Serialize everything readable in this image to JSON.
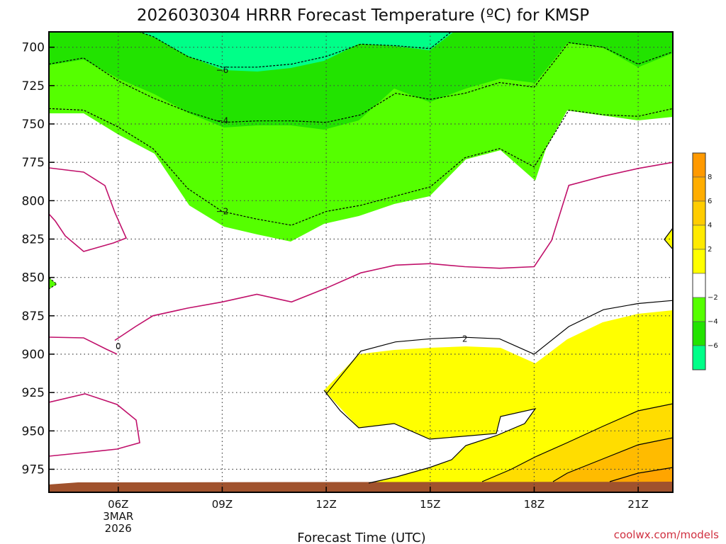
{
  "chart_data": {
    "type": "heatmap",
    "title": "2026030304 HRRR Forecast Temperature (ºC) for KMSP",
    "xlabel": "Forecast Time (UTC)",
    "ylabel": "",
    "credit": "coolwx.com/models",
    "x_hours": [
      4,
      5,
      6,
      7,
      8,
      9,
      10,
      11,
      12,
      13,
      14,
      15,
      16,
      17,
      18,
      19,
      20,
      21,
      22
    ],
    "x_range": [
      4,
      22
    ],
    "y_range": [
      990,
      690
    ],
    "x_ticks": [
      {
        "hour": 6,
        "label": "06Z",
        "sub": [
          "3MAR",
          "2026"
        ]
      },
      {
        "hour": 9,
        "label": "09Z"
      },
      {
        "hour": 12,
        "label": "12Z"
      },
      {
        "hour": 15,
        "label": "15Z"
      },
      {
        "hour": 18,
        "label": "18Z"
      },
      {
        "hour": 21,
        "label": "21Z"
      }
    ],
    "y_ticks": [
      700,
      725,
      750,
      775,
      800,
      825,
      850,
      875,
      900,
      925,
      950,
      975
    ],
    "y_tick_labels": [
      "700",
      "725",
      "750",
      "775",
      "800",
      "825",
      "850",
      "875",
      "900",
      "925",
      "950",
      "975"
    ],
    "grid": true,
    "isotherms": [
      {
        "level": -6,
        "label": "−6",
        "label_at": [
          9,
          715
        ],
        "points": [
          [
            6.6,
            690
          ],
          [
            7.0,
            693
          ],
          [
            8.0,
            706
          ],
          [
            9.0,
            713
          ],
          [
            10.0,
            713
          ],
          [
            11.0,
            711
          ],
          [
            12.0,
            706
          ],
          [
            13.0,
            698
          ],
          [
            14.0,
            699
          ],
          [
            15.0,
            701
          ],
          [
            15.6,
            690
          ]
        ]
      },
      {
        "level": -4,
        "label": "−4",
        "label_at": [
          9,
          748
        ],
        "points": [
          [
            4,
            711
          ],
          [
            5,
            707
          ],
          [
            6,
            722
          ],
          [
            7,
            733
          ],
          [
            8,
            742
          ],
          [
            9,
            749
          ],
          [
            10,
            748
          ],
          [
            11,
            748
          ],
          [
            12,
            749
          ],
          [
            13,
            744
          ],
          [
            14,
            730
          ],
          [
            15,
            734
          ],
          [
            16,
            730
          ],
          [
            17,
            723
          ],
          [
            18,
            726
          ],
          [
            19,
            697
          ],
          [
            20,
            700
          ],
          [
            21,
            711
          ],
          [
            22,
            703
          ]
        ]
      },
      {
        "level": -2,
        "label": "−2",
        "label_at": [
          9,
          807
        ],
        "points": [
          [
            4,
            740
          ],
          [
            5,
            741
          ],
          [
            6,
            752
          ],
          [
            7,
            766
          ],
          [
            8,
            792
          ],
          [
            9,
            807
          ],
          [
            10,
            812
          ],
          [
            11,
            816
          ],
          [
            12,
            807
          ],
          [
            13,
            803
          ],
          [
            14,
            797
          ],
          [
            15,
            791
          ],
          [
            16,
            772
          ],
          [
            17,
            766
          ],
          [
            18,
            778
          ],
          [
            19,
            741
          ],
          [
            20,
            744
          ],
          [
            21,
            745
          ],
          [
            22,
            740
          ]
        ]
      },
      {
        "level": 0,
        "label": "0",
        "label_at": [
          6,
          895
        ],
        "points": [
          [
            5.9,
            891
          ],
          [
            6.5,
            882
          ],
          [
            7.0,
            875
          ],
          [
            8.0,
            870
          ],
          [
            9.0,
            866
          ],
          [
            10.0,
            861
          ],
          [
            11.0,
            866
          ],
          [
            12.0,
            857
          ],
          [
            13.0,
            847
          ],
          [
            14.0,
            842
          ],
          [
            15.0,
            841
          ],
          [
            16.0,
            843
          ],
          [
            17.0,
            844
          ],
          [
            18.0,
            843
          ],
          [
            18.5,
            826
          ],
          [
            19.0,
            790
          ],
          [
            20.0,
            784
          ],
          [
            21.0,
            779
          ],
          [
            22.0,
            775
          ]
        ]
      },
      {
        "level": 2,
        "label": "2",
        "label_at": [
          16,
          890
        ],
        "points": [
          [
            12.0,
            926
          ],
          [
            13.0,
            898
          ],
          [
            14.0,
            892
          ],
          [
            15.0,
            890
          ],
          [
            16.0,
            889
          ],
          [
            17.0,
            890
          ],
          [
            18.0,
            900
          ],
          [
            19.0,
            882
          ],
          [
            20.0,
            871
          ],
          [
            21.0,
            867
          ],
          [
            22.0,
            865
          ]
        ]
      }
    ],
    "colorbar": {
      "labels": [
        "8",
        "6",
        "4",
        "2",
        "−2",
        "−4",
        "−6"
      ],
      "colors": [
        "#ff9900",
        "#ffad00",
        "#ffcc00",
        "#ffea00",
        "#ffff00",
        "#ffffff",
        "#55ff00",
        "#22e300",
        "#00ff88"
      ]
    },
    "fill_colors": {
      "minus6": "#00ff88",
      "minus4": "#22e300",
      "minus2": "#55ff00",
      "zero_band": "#ffffff",
      "plus2": "#ffff00",
      "plus4": "#ffdd00",
      "plus6": "#ffbb00",
      "plus8": "#ffa500",
      "ground": "#a0522d",
      "isotherm_zero": "#c0106a"
    }
  }
}
